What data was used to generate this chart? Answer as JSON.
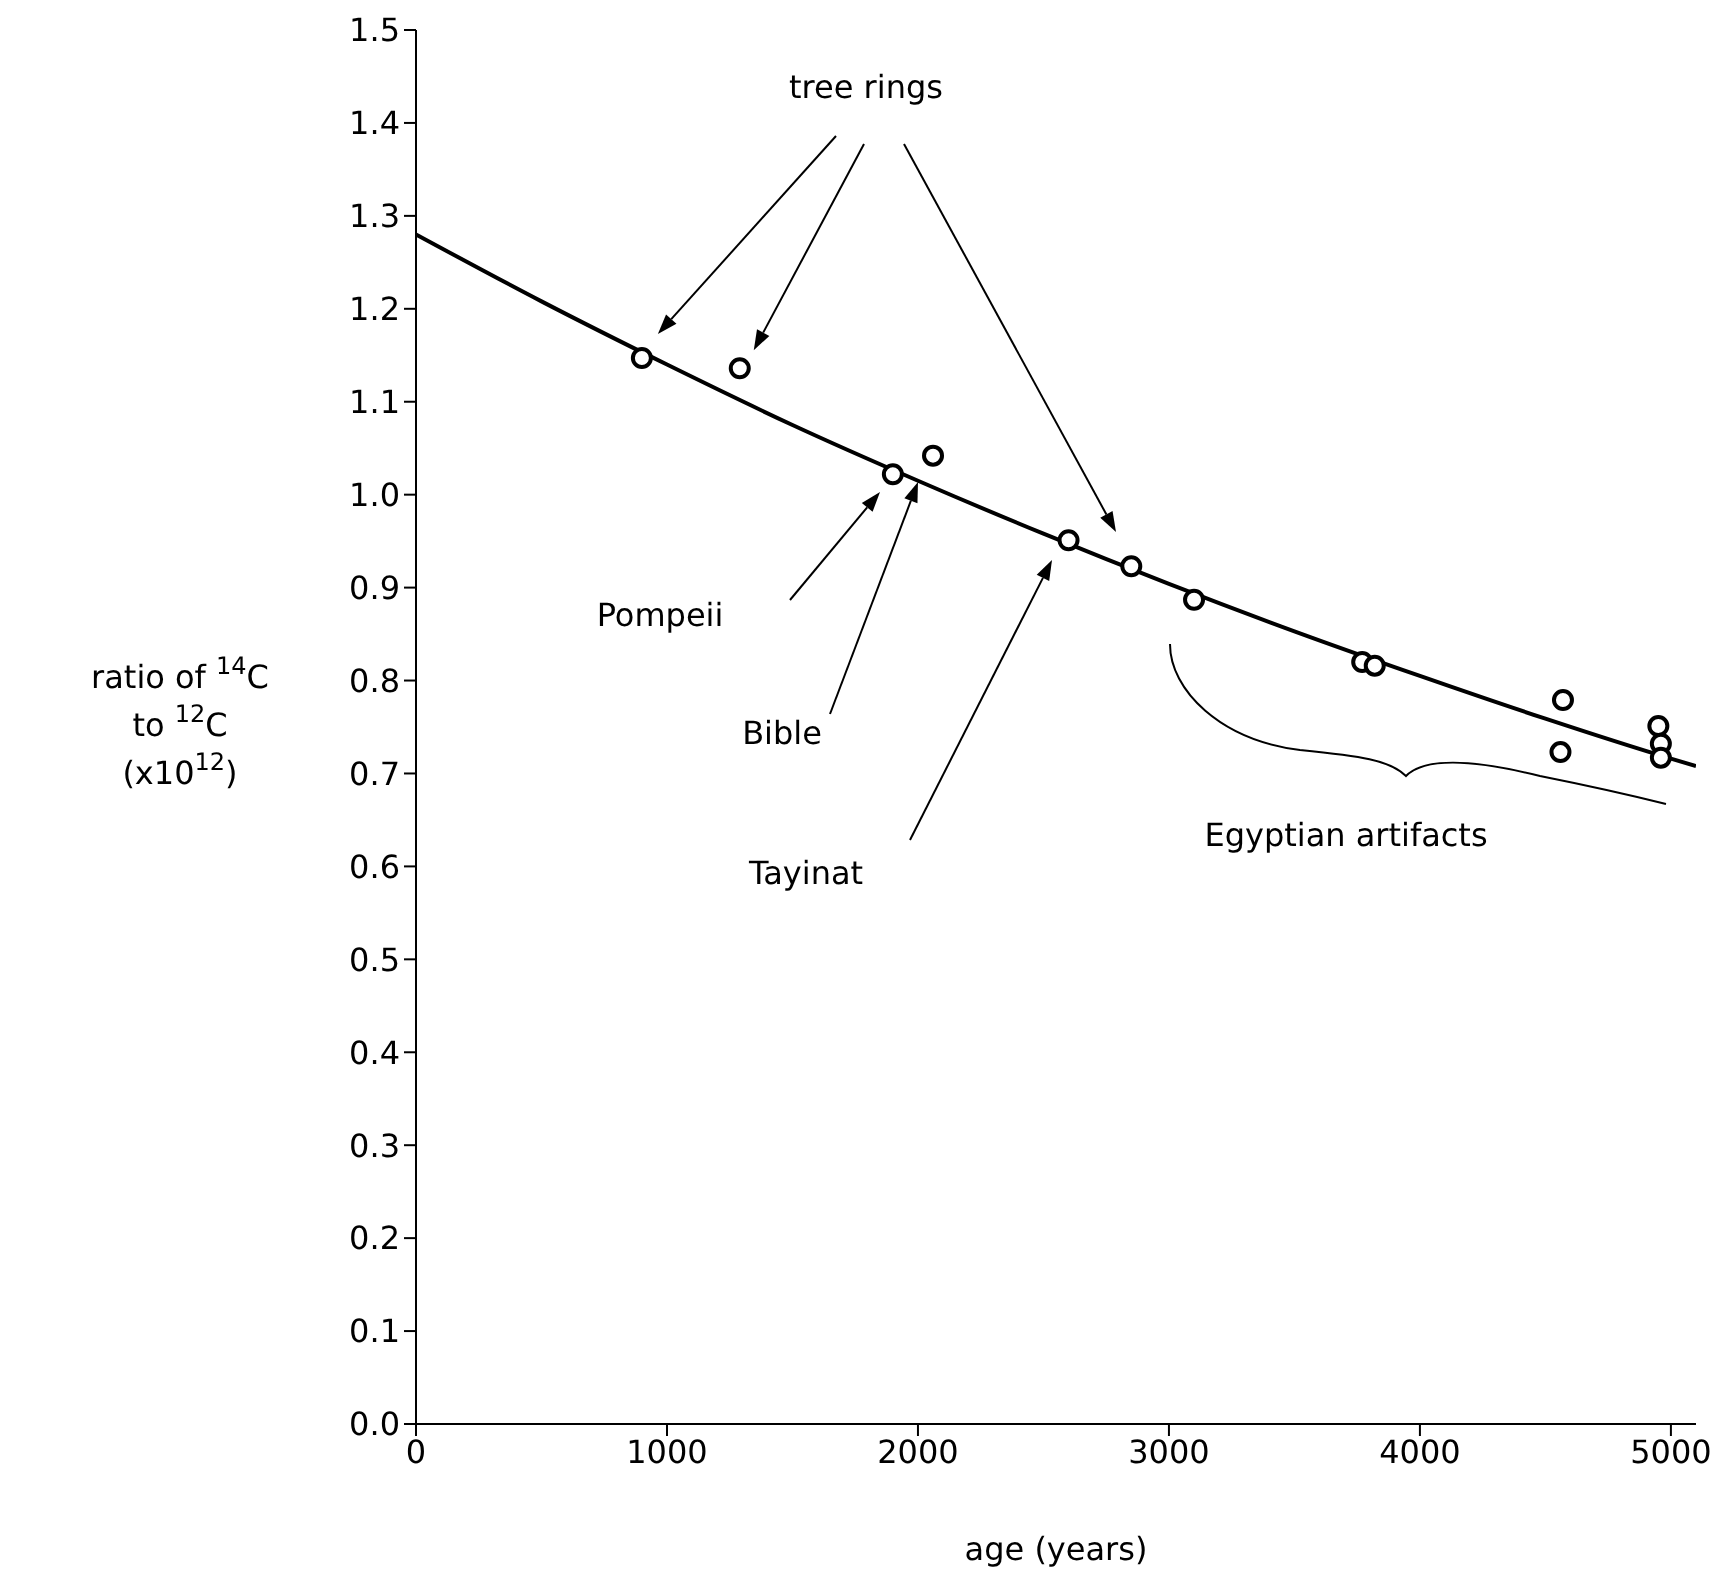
{
  "chart_data": {
    "type": "scatter",
    "xlabel": "age (years)",
    "ylabel": "ratio of $^{14}$C\nto $^{12}$C\n(x10$^{12}$)",
    "xlim": [
      0,
      5100
    ],
    "xticks": [
      0,
      1000,
      2000,
      3000,
      4000,
      5000
    ],
    "ylim": [
      0,
      1.5
    ],
    "yticks": [
      {
        "value": 0,
        "label": "0.0"
      },
      {
        "value": 0.1,
        "label": "0.1"
      },
      {
        "value": 0.2,
        "label": "0.2"
      },
      {
        "value": 0.3,
        "label": "0.3"
      },
      {
        "value": 0.4,
        "label": "0.4"
      },
      {
        "value": 0.5,
        "label": "0.5"
      },
      {
        "value": 0.6,
        "label": "0.6"
      },
      {
        "value": 0.7,
        "label": "0.7"
      },
      {
        "value": 0.8,
        "label": "0.8"
      },
      {
        "value": 0.9,
        "label": "0.9"
      },
      {
        "value": 1,
        "label": "1.0"
      },
      {
        "value": 1.1,
        "label": "1.1"
      },
      {
        "value": 1.2,
        "label": "1.2"
      },
      {
        "value": 1.3,
        "label": "1.3"
      },
      {
        "value": 1.4,
        "label": "1.4"
      },
      {
        "value": 1.5,
        "label": "1.5"
      }
    ],
    "grid": false,
    "legend": false,
    "series": [
      {
        "color": "#000000",
        "marker": "circle",
        "x": [
          900,
          1290,
          1900,
          2060,
          2600,
          2850,
          3100,
          3770,
          3820,
          4570,
          4560,
          4950,
          4960,
          4960
        ],
        "values": [
          1.147,
          1.136,
          1.022,
          1.042,
          0.951,
          0.923,
          0.887,
          0.82,
          0.816,
          0.779,
          0.723,
          0.751,
          0.732,
          0.717
        ]
      },
      {
        "type": "line",
        "color": "#000000",
        "marker": "none",
        "line_style": "solid",
        "x": [
          0,
          500,
          1000,
          1500,
          2000,
          2500,
          3000,
          3500,
          4000,
          4500,
          5000,
          5100
        ],
        "values": [
          1.28,
          1.208,
          1.14,
          1.075,
          1.015,
          0.958,
          0.904,
          0.853,
          0.805,
          0.759,
          0.716,
          0.708
        ]
      }
    ],
    "annotations": [
      "tree rings",
      "Pompeii",
      "Bible",
      "Tayinat",
      "Egyptian artifacts"
    ]
  }
}
